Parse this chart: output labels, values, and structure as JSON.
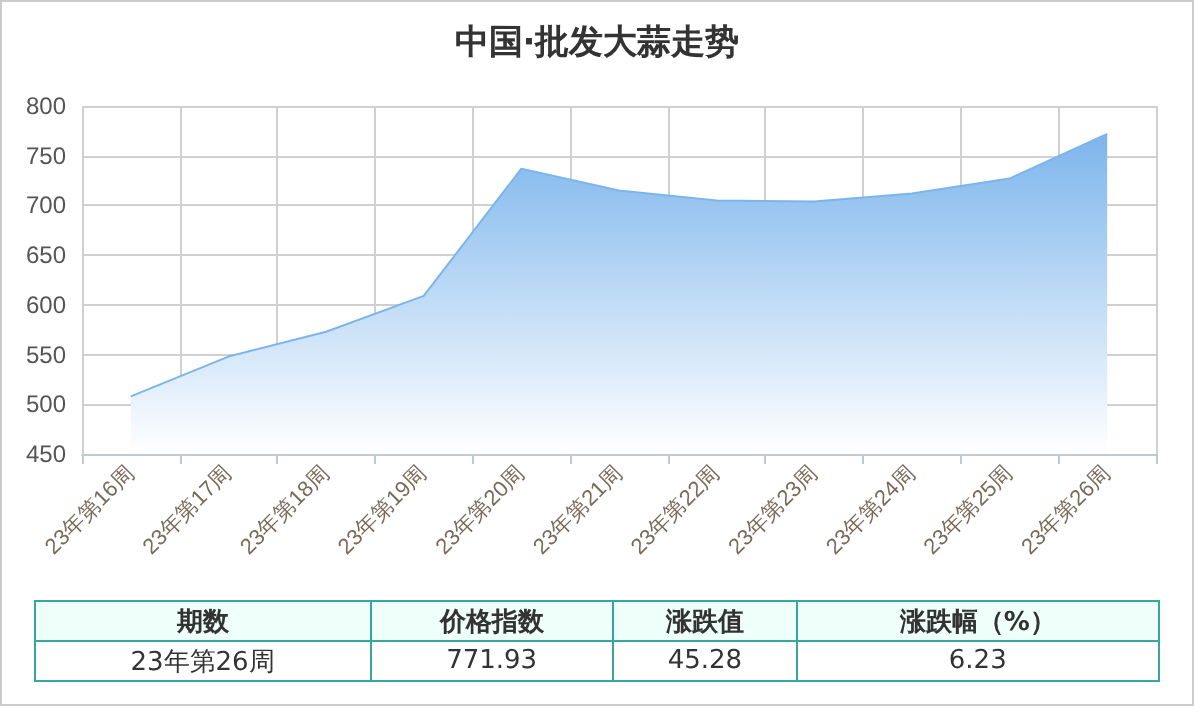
{
  "chart_data": {
    "type": "area",
    "title": "中国·批发大蒜走势",
    "categories": [
      "23年第16周",
      "23年第17周",
      "23年第18周",
      "23年第19周",
      "23年第20周",
      "23年第21周",
      "23年第22周",
      "23年第23周",
      "23年第24周",
      "23年第25周",
      "23年第26周"
    ],
    "series": [
      {
        "color": "#7cb5ec",
        "values": [
          508,
          548,
          573,
          609,
          737,
          715,
          705,
          704,
          712,
          727,
          772
        ]
      }
    ],
    "ylim": [
      450,
      800
    ],
    "yticks": [
      450,
      500,
      550,
      600,
      650,
      700,
      750,
      800
    ],
    "grid": true,
    "marker": "none",
    "annotations": [
      "期数",
      "价格指数",
      "涨跌值",
      "涨跌幅（%）",
      "23年第26周",
      "771.93",
      "45.28",
      "6.23"
    ]
  }
}
